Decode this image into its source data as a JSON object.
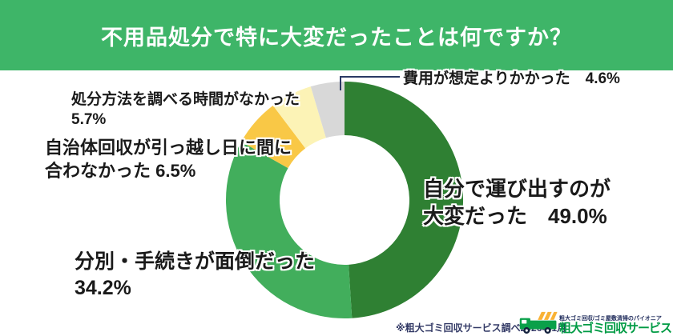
{
  "header": {
    "title": "不用品処分で特に大変だったことは何ですか？",
    "bg_color": "#3eb568",
    "text_color": "#ffffff"
  },
  "chart_data": {
    "type": "pie",
    "subtype": "donut",
    "title": "不用品処分で特に大変だったことは何ですか？",
    "unit": "%",
    "start_angle_deg": 0,
    "direction": "clockwise",
    "inner_radius_ratio": 0.55,
    "leader_line_color": "#2b3a64",
    "slices": [
      {
        "label": "自分で運び出すのが大変だった",
        "value": 49.0,
        "color": "#2f8033",
        "line1": "自分で運び出すのが",
        "line2": "大変だった　49.0%"
      },
      {
        "label": "分別・手続きが面倒だった",
        "value": 34.2,
        "color": "#42ae5c",
        "line1": "分別・手続きが面倒だった",
        "line2": "34.2%"
      },
      {
        "label": "自治体回収が引っ越し日に間に合わなかった",
        "value": 6.5,
        "color": "#f9c846",
        "line1": "自治体回収が引っ越し日に間に",
        "line2": "合わなかった 6.5%"
      },
      {
        "label": "処分方法を調べる時間がなかった",
        "value": 5.7,
        "color": "#fcf3b6",
        "line1": "処分方法を調べる時間がなかった",
        "line2": "5.7%"
      },
      {
        "label": "費用が想定よりかかった",
        "value": 4.6,
        "color": "#d8d8d8",
        "line1": "費用が想定よりかかった　4.6%"
      }
    ]
  },
  "footer": {
    "note": "※粗大ゴミ回収サービス調べ2026年1月"
  },
  "logo": {
    "tagline": "粗大ゴミ回収/ゴミ屋敷清掃のパイオニア",
    "name": "粗大ゴミ回収サービス",
    "name_color": "#009b44",
    "tagline_color": "#1f2b5b",
    "truck_green": "#0aa04a",
    "truck_stripe": "#f9b234"
  }
}
